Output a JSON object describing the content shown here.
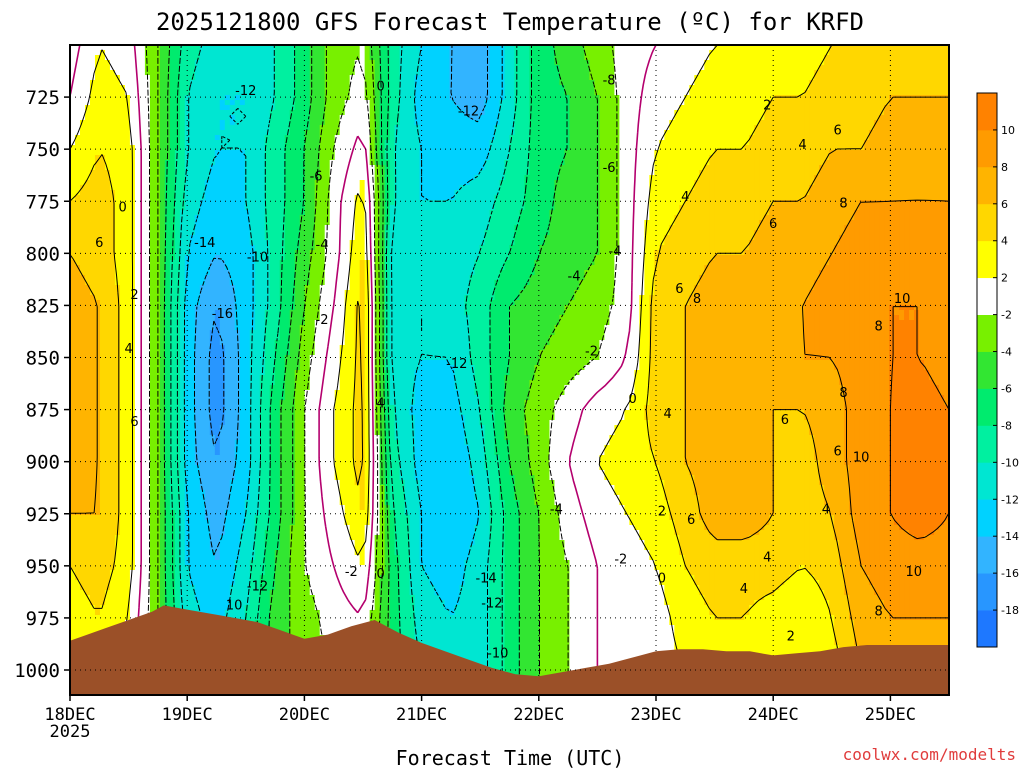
{
  "chart_data": {
    "type": "heatmap",
    "title": "2025121800 GFS Forecast Temperature (ºC) for KRFD",
    "xlabel": "Forecast Time (UTC)",
    "ylabel": "",
    "x_tick_labels": [
      "18DEC",
      "19DEC",
      "20DEC",
      "21DEC",
      "22DEC",
      "23DEC",
      "24DEC",
      "25DEC"
    ],
    "x_first_tick_year": "2025",
    "y_tick_labels": [
      "725",
      "750",
      "775",
      "800",
      "825",
      "850",
      "875",
      "900",
      "925",
      "950",
      "975",
      "1000"
    ],
    "ylim": [
      1012,
      700
    ],
    "xlim": [
      0,
      7.5
    ],
    "colorbar": {
      "levels": [
        -20,
        -18,
        -16,
        -14,
        -12,
        -10,
        -8,
        -6,
        -4,
        -2,
        2,
        4,
        6,
        8,
        10,
        12
      ],
      "tick_labels": [
        "-18",
        "-16",
        "-14",
        "-12",
        "-10",
        "-8",
        "-6",
        "-4",
        "-2",
        "2",
        "4",
        "6",
        "8",
        "10"
      ],
      "colors": [
        "#1e78ff",
        "#2896ff",
        "#32b4ff",
        "#00d2ff",
        "#00e6d2",
        "#00f0a0",
        "#00eb6e",
        "#32e632",
        "#78f000",
        "#ffffff",
        "#ffff00",
        "#ffd700",
        "#ffb400",
        "#ff9b00",
        "#ff8200"
      ]
    },
    "terrain_color": "#9b5028",
    "surface_pressure": {
      "x": [
        0,
        0.3,
        0.5,
        0.7,
        0.8,
        1.0,
        1.3,
        1.6,
        1.8,
        2.0,
        2.2,
        2.4,
        2.6,
        2.8,
        3.0,
        3.2,
        3.4,
        3.6,
        3.8,
        4.0,
        4.2,
        4.4,
        4.6,
        4.8,
        5.0,
        5.2,
        5.4,
        5.6,
        5.8,
        6.0,
        6.2,
        6.4,
        6.6,
        6.8,
        7.0,
        7.2,
        7.5
      ],
      "p": [
        986,
        980,
        976,
        972,
        969,
        971,
        974,
        977,
        981,
        985,
        983,
        979,
        976,
        982,
        987,
        991,
        995,
        999,
        1002,
        1003,
        1001,
        999,
        997,
        994,
        991,
        990,
        990,
        991,
        991,
        993,
        992,
        991,
        989,
        988,
        988,
        988,
        988
      ]
    },
    "times": [
      0,
      0.25,
      0.5,
      0.75,
      1.0,
      1.25,
      1.5,
      1.75,
      2.0,
      2.25,
      2.5,
      2.75,
      3.0,
      3.25,
      3.5,
      3.75,
      4.0,
      4.25,
      4.5,
      4.75,
      5.0,
      5.25,
      5.5,
      5.75,
      6.0,
      6.25,
      6.5,
      6.75,
      7.0,
      7.25,
      7.5
    ],
    "pressures": [
      700,
      725,
      750,
      775,
      800,
      825,
      850,
      875,
      900,
      925,
      950,
      975,
      1000,
      1012
    ],
    "temperature": [
      [
        -1,
        2,
        1,
        -4,
        -9,
        -11,
        -12,
        -10,
        -7,
        -3,
        -2,
        -9,
        -12,
        -14,
        -15,
        -11,
        -7,
        -5,
        -3,
        -1,
        0,
        1,
        2,
        2,
        3,
        3,
        4,
        5,
        5,
        5,
        5
      ],
      [
        0,
        3,
        2,
        -4,
        -10,
        -12,
        -12,
        -10,
        -7,
        -3,
        -1,
        -9,
        -13,
        -14,
        -15,
        -11,
        -7,
        -6,
        -4,
        -1,
        1,
        2,
        3,
        3,
        4,
        4,
        5,
        5,
        6,
        6,
        6
      ],
      [
        2,
        4,
        3,
        -4,
        -10,
        -12,
        -12,
        -9,
        -6,
        -2,
        1,
        -10,
        -12,
        -13,
        -13,
        -10,
        -7,
        -6,
        -4,
        -1,
        2,
        3,
        4,
        4,
        5,
        5,
        6,
        6,
        7,
        7,
        7
      ],
      [
        4,
        5,
        3,
        -4,
        -11,
        -13,
        -12,
        -9,
        -6,
        -1,
        3,
        -10,
        -12,
        -12,
        -11,
        -9,
        -7,
        -5,
        -4,
        -1,
        3,
        4,
        5,
        5,
        6,
        6,
        7,
        8,
        8,
        8,
        8
      ],
      [
        6,
        5,
        3,
        -4,
        -12,
        -14,
        -13,
        -9,
        -5,
        -1,
        4,
        -11,
        -12,
        -11,
        -10,
        -8,
        -6,
        -5,
        -4,
        -1,
        4,
        5,
        6,
        6,
        7,
        7,
        8,
        9,
        9,
        10,
        9
      ],
      [
        7,
        6,
        3,
        -4,
        -13,
        -16,
        -13,
        -9,
        -4,
        0,
        5,
        -11,
        -12,
        -11,
        -9,
        -6,
        -5,
        -4,
        -3,
        -1,
        5,
        6,
        7,
        7,
        7,
        8,
        9,
        9,
        10,
        10,
        9
      ],
      [
        7,
        6,
        3,
        -4,
        -13,
        -17,
        -13,
        -8,
        -3,
        1,
        5,
        -11,
        -12,
        -12,
        -9,
        -6,
        -4,
        -3,
        -2,
        0,
        5,
        6,
        7,
        7,
        7,
        8,
        8,
        9,
        10,
        10,
        9
      ],
      [
        7,
        6,
        3,
        -4,
        -13,
        -17,
        -13,
        -7,
        -2,
        2,
        5,
        -10,
        -13,
        -13,
        -10,
        -5,
        -3,
        -1,
        1,
        2,
        5,
        6,
        7,
        7,
        6,
        6,
        7,
        9,
        10,
        11,
        10
      ],
      [
        7,
        6,
        3,
        -4,
        -13,
        -16,
        -13,
        -7,
        -2,
        2,
        5,
        -9,
        -13,
        -14,
        -11,
        -6,
        -3,
        0,
        2,
        3,
        4,
        6,
        7,
        7,
        6,
        5,
        7,
        9,
        10,
        11,
        10
      ],
      [
        6,
        6,
        3,
        -4,
        -12,
        -15,
        -12,
        -7,
        -2,
        1,
        4,
        -8,
        -12,
        -14,
        -12,
        -7,
        -4,
        -1,
        1,
        2,
        3,
        5,
        7,
        7,
        6,
        5,
        6,
        9,
        10,
        11,
        10
      ],
      [
        4,
        5,
        3,
        -4,
        -12,
        -14,
        -11,
        -6,
        -2,
        0,
        2,
        -7,
        -12,
        -13,
        -11,
        -7,
        -4,
        -2,
        0,
        1,
        2,
        4,
        5,
        5,
        5,
        4,
        5,
        8,
        9,
        9,
        9
      ],
      [
        3,
        4,
        2,
        -4,
        -11,
        -13,
        -10,
        -5,
        -3,
        -1,
        0,
        -7,
        -11,
        -12,
        -11,
        -7,
        -4,
        -2,
        0,
        1,
        1,
        3,
        4,
        4,
        3,
        2,
        4,
        7,
        8,
        8,
        8
      ],
      [
        1,
        2,
        1,
        -4,
        -10,
        -12,
        -9,
        -5,
        -3,
        -2,
        -1,
        -7,
        -10,
        -11,
        -11,
        -7,
        -4,
        -2,
        0,
        1,
        1,
        2,
        3,
        3,
        2,
        2,
        3,
        6,
        7,
        7,
        7
      ],
      [
        1,
        2,
        1,
        -4,
        -10,
        -12,
        -9,
        -5,
        -3,
        -2,
        -1,
        -7,
        -10,
        -11,
        -11,
        -7,
        -4,
        -2,
        0,
        1,
        1,
        2,
        3,
        3,
        2,
        2,
        3,
        6,
        7,
        7,
        7
      ]
    ],
    "contour_labels": [
      {
        "text": "0",
        "x": 0.45,
        "p": 778
      },
      {
        "text": "6",
        "x": 0.25,
        "p": 795
      },
      {
        "text": "2",
        "x": 0.55,
        "p": 820
      },
      {
        "text": "4",
        "x": 0.5,
        "p": 846
      },
      {
        "text": "6",
        "x": 0.55,
        "p": 881
      },
      {
        "text": "-14",
        "x": 1.15,
        "p": 795
      },
      {
        "text": "-10",
        "x": 1.6,
        "p": 802
      },
      {
        "text": "-16",
        "x": 1.3,
        "p": 829
      },
      {
        "text": "-12",
        "x": 1.5,
        "p": 722
      },
      {
        "text": "-6",
        "x": 2.1,
        "p": 763
      },
      {
        "text": "-4",
        "x": 2.15,
        "p": 796
      },
      {
        "text": "-2",
        "x": 2.15,
        "p": 832
      },
      {
        "text": "0",
        "x": 2.65,
        "p": 720
      },
      {
        "text": "4",
        "x": 2.65,
        "p": 872
      },
      {
        "text": "-2",
        "x": 2.4,
        "p": 953
      },
      {
        "text": "0",
        "x": 2.65,
        "p": 954
      },
      {
        "text": "-12",
        "x": 1.6,
        "p": 960
      },
      {
        "text": "10",
        "x": 1.4,
        "p": 969
      },
      {
        "text": "-12",
        "x": 3.4,
        "p": 732
      },
      {
        "text": "-8",
        "x": 4.6,
        "p": 717
      },
      {
        "text": "-6",
        "x": 4.6,
        "p": 759
      },
      {
        "text": "-4",
        "x": 4.3,
        "p": 811
      },
      {
        "text": "-4",
        "x": 4.65,
        "p": 799
      },
      {
        "text": "-12",
        "x": 3.3,
        "p": 853
      },
      {
        "text": "-2",
        "x": 4.45,
        "p": 847
      },
      {
        "text": "0",
        "x": 4.8,
        "p": 870
      },
      {
        "text": "-4",
        "x": 4.15,
        "p": 923
      },
      {
        "text": "-14",
        "x": 3.55,
        "p": 956
      },
      {
        "text": "-12",
        "x": 3.6,
        "p": 968
      },
      {
        "text": "-10",
        "x": 3.65,
        "p": 992
      },
      {
        "text": "-2",
        "x": 4.7,
        "p": 947
      },
      {
        "text": "0",
        "x": 5.05,
        "p": 956
      },
      {
        "text": "2",
        "x": 5.05,
        "p": 924
      },
      {
        "text": "4",
        "x": 5.1,
        "p": 877
      },
      {
        "text": "4",
        "x": 5.25,
        "p": 773
      },
      {
        "text": "6",
        "x": 5.2,
        "p": 817
      },
      {
        "text": "8",
        "x": 5.35,
        "p": 822
      },
      {
        "text": "6",
        "x": 5.3,
        "p": 928
      },
      {
        "text": "2",
        "x": 5.95,
        "p": 729
      },
      {
        "text": "4",
        "x": 6.25,
        "p": 748
      },
      {
        "text": "6",
        "x": 6.0,
        "p": 786
      },
      {
        "text": "6",
        "x": 6.55,
        "p": 741
      },
      {
        "text": "8",
        "x": 6.6,
        "p": 776
      },
      {
        "text": "10",
        "x": 7.1,
        "p": 822
      },
      {
        "text": "8",
        "x": 6.9,
        "p": 835
      },
      {
        "text": "8",
        "x": 6.6,
        "p": 867
      },
      {
        "text": "6",
        "x": 6.1,
        "p": 880
      },
      {
        "text": "6",
        "x": 6.55,
        "p": 895
      },
      {
        "text": "10",
        "x": 6.75,
        "p": 898
      },
      {
        "text": "4",
        "x": 6.45,
        "p": 923
      },
      {
        "text": "4",
        "x": 5.95,
        "p": 946
      },
      {
        "text": "4",
        "x": 5.75,
        "p": 961
      },
      {
        "text": "2",
        "x": 6.15,
        "p": 984
      },
      {
        "text": "10",
        "x": 7.2,
        "p": 953
      },
      {
        "text": "8",
        "x": 6.9,
        "p": 972
      }
    ],
    "watermark": "coolwx.com/modelts"
  }
}
